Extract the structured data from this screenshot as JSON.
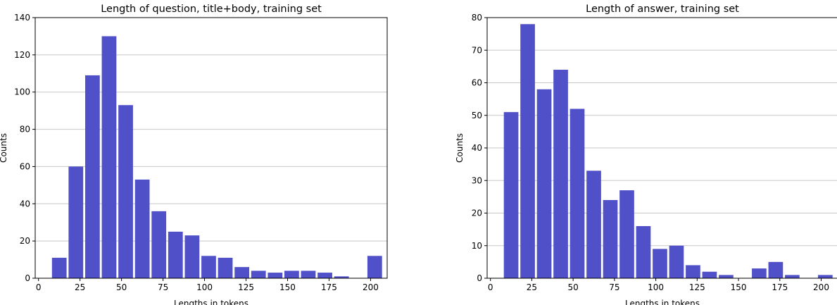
{
  "charts": [
    {
      "type": "bar",
      "title": "Length of question, title+body, training set",
      "xlabel": "Lengths in tokens",
      "ylabel": "Counts",
      "x": [
        12.5,
        22.5,
        32.5,
        42.5,
        52.5,
        62.5,
        72.5,
        82.5,
        92.5,
        102.5,
        112.5,
        122.5,
        132.5,
        142.5,
        152.5,
        162.5,
        172.5,
        182.5,
        192.5,
        202.5
      ],
      "values": [
        11,
        60,
        109,
        130,
        93,
        53,
        36,
        25,
        23,
        12,
        11,
        6,
        4,
        3,
        4,
        4,
        3,
        1,
        0,
        12
      ],
      "bin_width": 10,
      "xlim": [
        -2,
        210
      ],
      "ylim": [
        0,
        140
      ],
      "xticks": [
        0,
        25,
        50,
        75,
        100,
        125,
        150,
        175,
        200
      ],
      "yticks": [
        0,
        20,
        40,
        60,
        80,
        100,
        120,
        140
      ],
      "color": "#5050c8",
      "grid": "horizontal"
    },
    {
      "type": "bar",
      "title": "Length of answer, training set",
      "xlabel": "Lengths in tokens",
      "ylabel": "Counts",
      "x": [
        12.5,
        22.5,
        32.5,
        42.5,
        52.5,
        62.5,
        72.5,
        82.5,
        92.5,
        102.5,
        112.5,
        122.5,
        132.5,
        142.5,
        152.5,
        162.5,
        172.5,
        182.5,
        192.5,
        202.5
      ],
      "values": [
        51,
        78,
        58,
        64,
        52,
        33,
        24,
        27,
        16,
        9,
        10,
        4,
        2,
        1,
        0,
        3,
        5,
        1,
        0,
        1
      ],
      "bin_width": 10,
      "xlim": [
        -2,
        210
      ],
      "ylim": [
        0,
        80
      ],
      "xticks": [
        0,
        25,
        50,
        75,
        100,
        125,
        150,
        175,
        200
      ],
      "yticks": [
        0,
        10,
        20,
        30,
        40,
        50,
        60,
        70,
        80
      ],
      "color": "#5050c8",
      "grid": "horizontal"
    }
  ]
}
